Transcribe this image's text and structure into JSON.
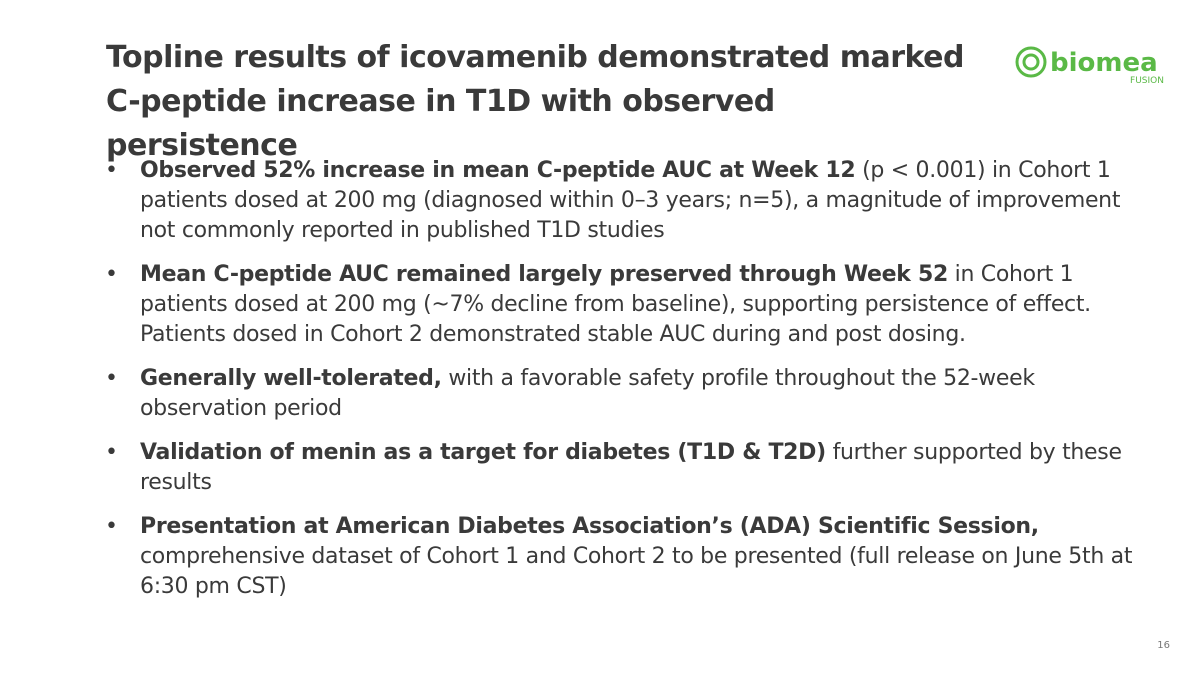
{
  "title": "Topline results of icovamenib demonstrated marked C-peptide increase in T1D with observed persistence",
  "logo": {
    "name": "biomea",
    "sub": "FUSION"
  },
  "bullets": [
    {
      "bold": "Observed 52% increase in mean C-peptide AUC at Week 12",
      "text": " (p < 0.001) in Cohort 1 patients dosed at 200 mg (diagnosed within 0–3 years; n=5), a magnitude of improvement not commonly reported in published T1D studies"
    },
    {
      "bold": "Mean C-peptide AUC remained largely preserved through Week 52",
      "text": " in Cohort 1 patients dosed at 200 mg (~7% decline from baseline), supporting persistence of effect. Patients dosed in Cohort 2 demonstrated stable AUC during and post dosing."
    },
    {
      "bold": "Generally well-tolerated,",
      "text": " with a favorable safety profile throughout the 52-week observation period"
    },
    {
      "bold": "Validation of menin as a target for diabetes (T1D & T2D)",
      "text": " further supported by these results"
    },
    {
      "bold": "Presentation at American Diabetes Association’s (ADA) Scientific Session,",
      "text": " comprehensive dataset of Cohort 1 and Cohort 2 to be presented (full release on June 5th at 6:30 pm CST)"
    }
  ],
  "page_number": "16"
}
